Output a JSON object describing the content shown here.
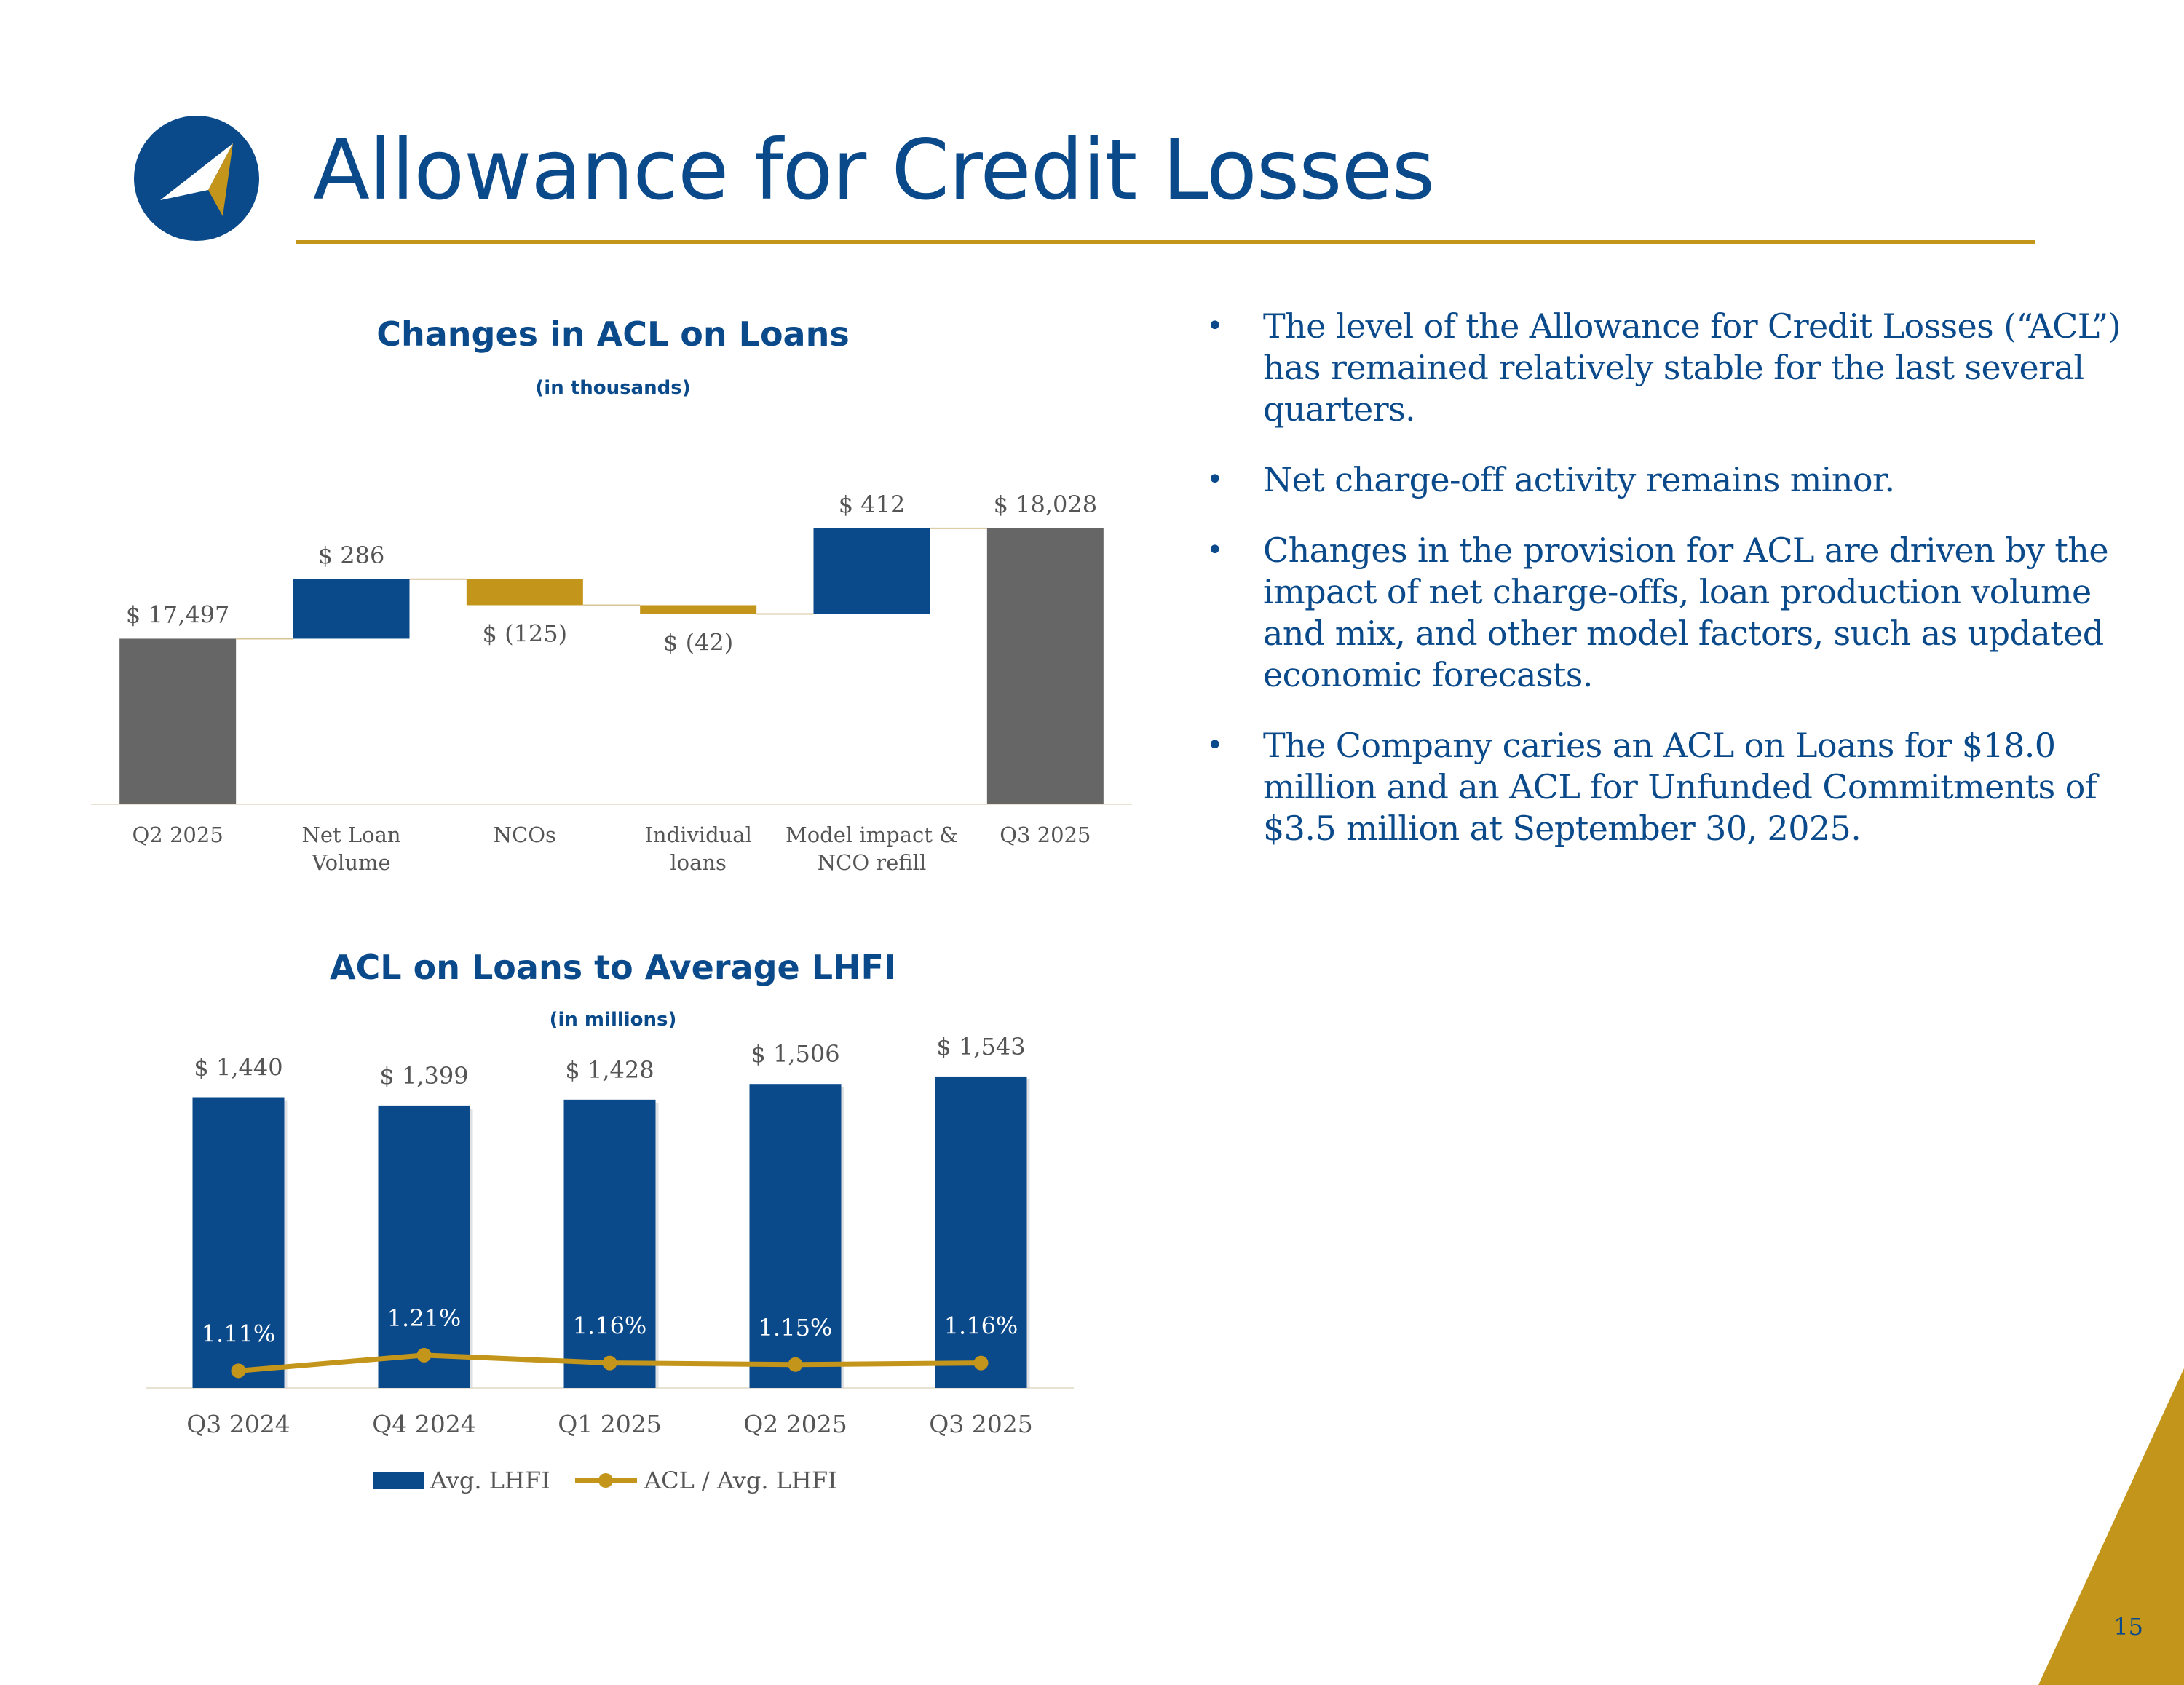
{
  "header": {
    "title": "Allowance for Credit Losses"
  },
  "colors": {
    "brand_blue": "#0b4a8a",
    "gold": "#c3951a",
    "gray": "#666666",
    "label_gray": "#555555"
  },
  "bullets": [
    "The level of the Allowance for Credit Losses (“ACL”) has remained relatively stable for the last several quarters.",
    "Net charge-off activity remains minor.",
    "Changes in the provision for ACL are driven by the impact of net charge-offs, loan production volume and mix, and other model factors, such as updated economic forecasts.",
    "The Company caries an ACL on Loans for $18.0 million and an ACL for Unfunded Commitments of $3.5 million at September 30, 2025."
  ],
  "bullet_symbol": "•",
  "page_number": "15",
  "chart_data": [
    {
      "type": "waterfall",
      "title": "Changes in ACL on Loans",
      "subtitle": "(in thousands)",
      "categories": [
        "Q2 2025",
        "Net Loan Volume",
        "NCOs",
        "Individual loans",
        "Model impact & NCO refill",
        "Q3 2025"
      ],
      "category_lines": [
        [
          "Q2 2025"
        ],
        [
          "Net Loan",
          "Volume"
        ],
        [
          "NCOs"
        ],
        [
          "Individual",
          "loans"
        ],
        [
          "Model impact &",
          "NCO refill"
        ],
        [
          "Q3 2025"
        ]
      ],
      "values": [
        17497,
        286,
        -125,
        -42,
        412,
        18028
      ],
      "labels": [
        "$ 17,497",
        "$ 286",
        "$ (125)",
        "$ (42)",
        "$ 412",
        "$ 18,028"
      ],
      "kinds": [
        "total",
        "increase",
        "decrease",
        "decrease",
        "increase",
        "total"
      ],
      "ylim": [
        16700,
        18150
      ]
    },
    {
      "type": "bar+line",
      "title": "ACL on Loans to Average LHFI",
      "subtitle": "(in millions)",
      "categories": [
        "Q3 2024",
        "Q4 2024",
        "Q1 2025",
        "Q2 2025",
        "Q3 2025"
      ],
      "series": [
        {
          "name": "Avg. LHFI",
          "type": "bar",
          "values": [
            1440,
            1399,
            1428,
            1506,
            1543
          ],
          "labels": [
            "$ 1,440",
            "$ 1,399",
            "$ 1,428",
            "$ 1,506",
            "$ 1,543"
          ]
        },
        {
          "name": "ACL / Avg. LHFI",
          "type": "line",
          "values": [
            1.11,
            1.21,
            1.16,
            1.15,
            1.16
          ],
          "labels": [
            "1.11%",
            "1.21%",
            "1.16%",
            "1.15%",
            "1.16%"
          ]
        }
      ],
      "bar_ylim": [
        0,
        1550
      ],
      "line_ylim": [
        1.0,
        3.0
      ],
      "legend": "bottom"
    }
  ]
}
